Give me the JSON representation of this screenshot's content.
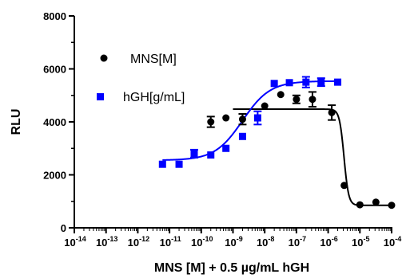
{
  "chart_data": {
    "type": "scatter",
    "xlabel": "MNS [M] + 0.5 µg/mL hGH",
    "ylabel": "RLU",
    "x_scale": "log",
    "xlim": [
      1e-14,
      0.0001
    ],
    "ylim": [
      0,
      8000
    ],
    "y_ticks": [
      0,
      2000,
      4000,
      6000,
      8000
    ],
    "y_tick_labels": [
      "0",
      "2000",
      "4000",
      "6000",
      "8000"
    ],
    "x_ticks": [
      1e-14,
      1e-13,
      1e-12,
      1e-11,
      1e-10,
      1e-09,
      1e-08,
      1e-07,
      1e-06,
      1e-05,
      0.0001
    ],
    "x_tick_bases": [
      "10",
      "10",
      "10",
      "10",
      "10",
      "10",
      "10",
      "10",
      "10",
      "10",
      "10"
    ],
    "x_tick_exps": [
      "-14",
      "-13",
      "-12",
      "-11",
      "-10",
      "-9",
      "-8",
      "-7",
      "-6",
      "-5",
      "-4"
    ],
    "grid": false,
    "legend_position": "top-left",
    "series": [
      {
        "name": "MNS[M]",
        "color": "#000000",
        "marker": "circle",
        "points": [
          {
            "x": 2e-10,
            "y": 4000,
            "err": 200
          },
          {
            "x": 6e-10,
            "y": 4150,
            "err": 0
          },
          {
            "x": 2e-09,
            "y": 4100,
            "err": 200
          },
          {
            "x": 1e-08,
            "y": 4600,
            "err": 0
          },
          {
            "x": 3.2e-08,
            "y": 5030,
            "err": 0
          },
          {
            "x": 1e-07,
            "y": 4850,
            "err": 150
          },
          {
            "x": 3.2e-07,
            "y": 4850,
            "err": 280
          },
          {
            "x": 1.3e-06,
            "y": 4350,
            "err": 280
          },
          {
            "x": 3.2e-06,
            "y": 1600,
            "err": 0
          },
          {
            "x": 1e-05,
            "y": 870,
            "err": 0
          },
          {
            "x": 3.2e-05,
            "y": 970,
            "err": 0
          },
          {
            "x": 0.0001,
            "y": 850,
            "err": 0
          }
        ],
        "fit": {
          "bottom": 4480,
          "top": 850,
          "log_ec50": -5.5,
          "hill": 6.0,
          "x_from": 1e-09,
          "x_to": 0.0001
        }
      },
      {
        "name": "hGH[g/mL]",
        "color": "#0000ff",
        "marker": "square",
        "points": [
          {
            "x": 6e-12,
            "y": 2400,
            "err": 0
          },
          {
            "x": 2e-11,
            "y": 2400,
            "err": 0
          },
          {
            "x": 6e-11,
            "y": 2800,
            "err": 150
          },
          {
            "x": 2e-10,
            "y": 2750,
            "err": 0
          },
          {
            "x": 6e-10,
            "y": 3000,
            "err": 0
          },
          {
            "x": 2e-09,
            "y": 3450,
            "err": 0
          },
          {
            "x": 6e-09,
            "y": 4150,
            "err": 250
          },
          {
            "x": 2e-08,
            "y": 5450,
            "err": 0
          },
          {
            "x": 6e-08,
            "y": 5480,
            "err": 0
          },
          {
            "x": 2e-07,
            "y": 5500,
            "err": 200
          },
          {
            "x": 6e-07,
            "y": 5500,
            "err": 150
          },
          {
            "x": 2e-06,
            "y": 5500,
            "err": 0
          }
        ],
        "fit": {
          "bottom": 2550,
          "top": 5540,
          "log_ec50": -8.7,
          "hill": 1.0,
          "x_from": 6e-12,
          "x_to": 2e-06
        }
      }
    ]
  }
}
